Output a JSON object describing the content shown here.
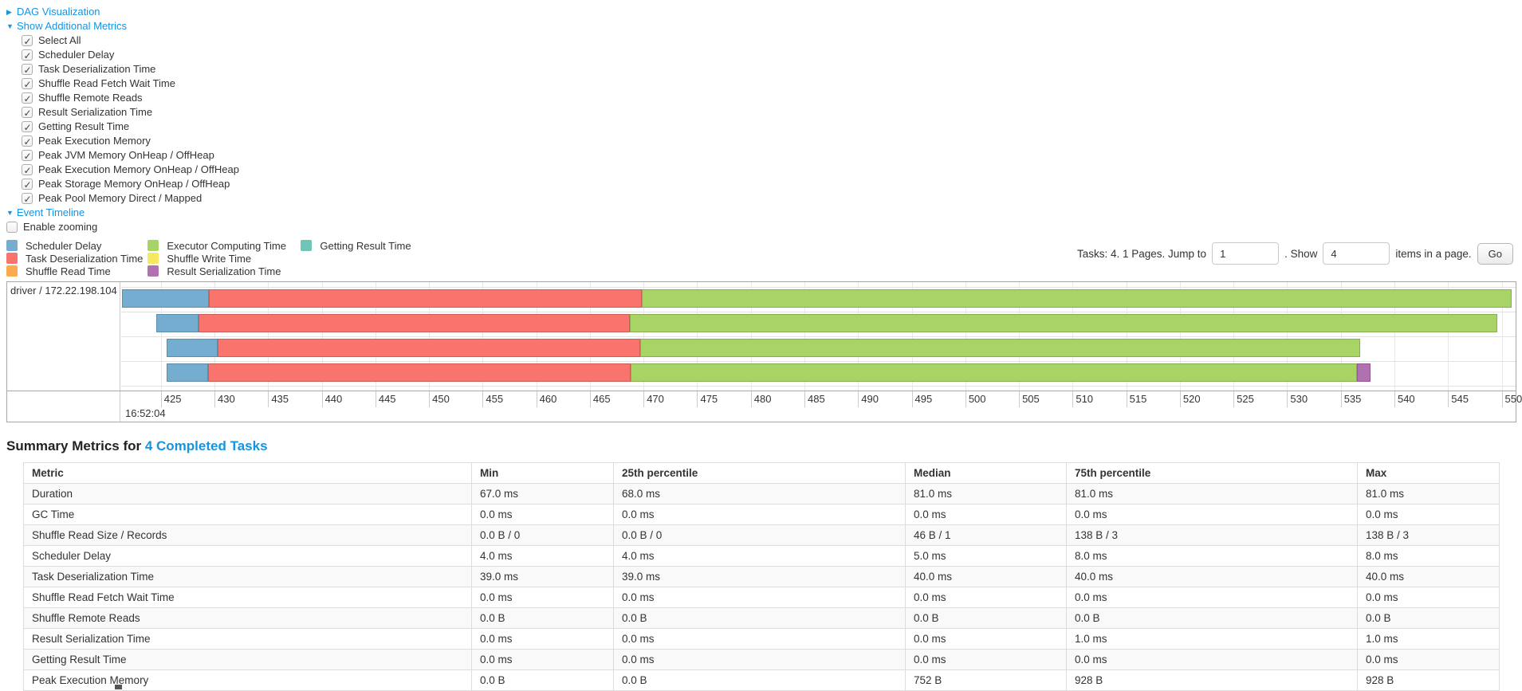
{
  "controls": {
    "dag": {
      "arrow": "▶",
      "label": "DAG Visualization"
    },
    "additional_metrics": {
      "arrow": "▼",
      "label": "Show Additional Metrics"
    },
    "event_timeline": {
      "arrow": "▼",
      "label": "Event Timeline"
    },
    "enable_zooming": "Enable zooming"
  },
  "additional_metrics_items": [
    "Select All",
    "Scheduler Delay",
    "Task Deserialization Time",
    "Shuffle Read Fetch Wait Time",
    "Shuffle Remote Reads",
    "Result Serialization Time",
    "Getting Result Time",
    "Peak Execution Memory",
    "Peak JVM Memory OnHeap / OffHeap",
    "Peak Execution Memory OnHeap / OffHeap",
    "Peak Storage Memory OnHeap / OffHeap",
    "Peak Pool Memory Direct / Mapped"
  ],
  "pagination": {
    "prefix": "Tasks: 4. 1 Pages. Jump to",
    "jump_value": "1",
    "middle": ". Show",
    "show_value": "4",
    "suffix": "items in a page.",
    "go_label": "Go"
  },
  "chart_data": {
    "type": "timeline-gantt",
    "row_label": "driver / 172.22.198.104",
    "time_label": "16:52:04",
    "x_unit": "milliseconds within second 16:52:04",
    "x_domain": [
      421.3,
      551.3
    ],
    "ticks": [
      425,
      430,
      435,
      440,
      445,
      450,
      455,
      460,
      465,
      470,
      475,
      480,
      485,
      490,
      495,
      500,
      505,
      510,
      515,
      520,
      525,
      530,
      535,
      540,
      545,
      550
    ],
    "colors": {
      "scheduler_delay": "#74ADD0",
      "task_deserialization": "#F8746C",
      "shuffle_read": "#FBAB4E",
      "executor_computing": "#A8D465",
      "shuffle_write": "#F6E961",
      "result_serialization": "#B170B0",
      "getting_result": "#6FC6B7"
    },
    "legend_columns": [
      [
        {
          "key": "scheduler_delay",
          "label": "Scheduler Delay"
        },
        {
          "key": "task_deserialization",
          "label": "Task Deserialization Time"
        },
        {
          "key": "shuffle_read",
          "label": "Shuffle Read Time"
        }
      ],
      [
        {
          "key": "executor_computing",
          "label": "Executor Computing Time"
        },
        {
          "key": "shuffle_write",
          "label": "Shuffle Write Time"
        },
        {
          "key": "result_serialization",
          "label": "Result Serialization Time"
        }
      ],
      [
        {
          "key": "getting_result",
          "label": "Getting Result Time"
        }
      ]
    ],
    "tasks": [
      {
        "segments": [
          {
            "key": "scheduler_delay",
            "start": 421.4,
            "end": 429.5
          },
          {
            "key": "task_deserialization",
            "start": 429.5,
            "end": 469.8
          },
          {
            "key": "executor_computing",
            "start": 469.8,
            "end": 550.9
          }
        ]
      },
      {
        "segments": [
          {
            "key": "scheduler_delay",
            "start": 424.6,
            "end": 428.5
          },
          {
            "key": "task_deserialization",
            "start": 428.5,
            "end": 468.7
          },
          {
            "key": "executor_computing",
            "start": 468.7,
            "end": 549.6
          }
        ]
      },
      {
        "segments": [
          {
            "key": "scheduler_delay",
            "start": 425.5,
            "end": 430.3
          },
          {
            "key": "task_deserialization",
            "start": 430.3,
            "end": 469.7
          },
          {
            "key": "executor_computing",
            "start": 469.7,
            "end": 536.8
          }
        ]
      },
      {
        "segments": [
          {
            "key": "scheduler_delay",
            "start": 425.5,
            "end": 429.4
          },
          {
            "key": "task_deserialization",
            "start": 429.4,
            "end": 468.8
          },
          {
            "key": "executor_computing",
            "start": 468.8,
            "end": 536.5
          },
          {
            "key": "result_serialization",
            "start": 536.5,
            "end": 537.8
          }
        ]
      }
    ]
  },
  "summary": {
    "title_prefix": "Summary Metrics for ",
    "title_link": "4 Completed Tasks",
    "columns": [
      "Metric",
      "Min",
      "25th percentile",
      "Median",
      "75th percentile",
      "Max"
    ],
    "rows": [
      {
        "metric": "Duration",
        "values": [
          "67.0 ms",
          "68.0 ms",
          "81.0 ms",
          "81.0 ms",
          "81.0 ms"
        ]
      },
      {
        "metric": "GC Time",
        "values": [
          "0.0 ms",
          "0.0 ms",
          "0.0 ms",
          "0.0 ms",
          "0.0 ms"
        ]
      },
      {
        "metric": "Shuffle Read Size / Records",
        "values": [
          "0.0 B / 0",
          "0.0 B / 0",
          "46 B / 1",
          "138 B / 3",
          "138 B / 3"
        ]
      },
      {
        "metric": "Scheduler Delay",
        "values": [
          "4.0 ms",
          "4.0 ms",
          "5.0 ms",
          "8.0 ms",
          "8.0 ms"
        ]
      },
      {
        "metric": "Task Deserialization Time",
        "values": [
          "39.0 ms",
          "39.0 ms",
          "40.0 ms",
          "40.0 ms",
          "40.0 ms"
        ]
      },
      {
        "metric": "Shuffle Read Fetch Wait Time",
        "values": [
          "0.0 ms",
          "0.0 ms",
          "0.0 ms",
          "0.0 ms",
          "0.0 ms"
        ]
      },
      {
        "metric": "Shuffle Remote Reads",
        "values": [
          "0.0 B",
          "0.0 B",
          "0.0 B",
          "0.0 B",
          "0.0 B"
        ]
      },
      {
        "metric": "Result Serialization Time",
        "values": [
          "0.0 ms",
          "0.0 ms",
          "0.0 ms",
          "1.0 ms",
          "1.0 ms"
        ]
      },
      {
        "metric": "Getting Result Time",
        "values": [
          "0.0 ms",
          "0.0 ms",
          "0.0 ms",
          "0.0 ms",
          "0.0 ms"
        ]
      },
      {
        "metric": "Peak Execution Memory",
        "values": [
          "0.0 B",
          "0.0 B",
          "752 B",
          "928 B",
          "928 B"
        ]
      }
    ]
  }
}
